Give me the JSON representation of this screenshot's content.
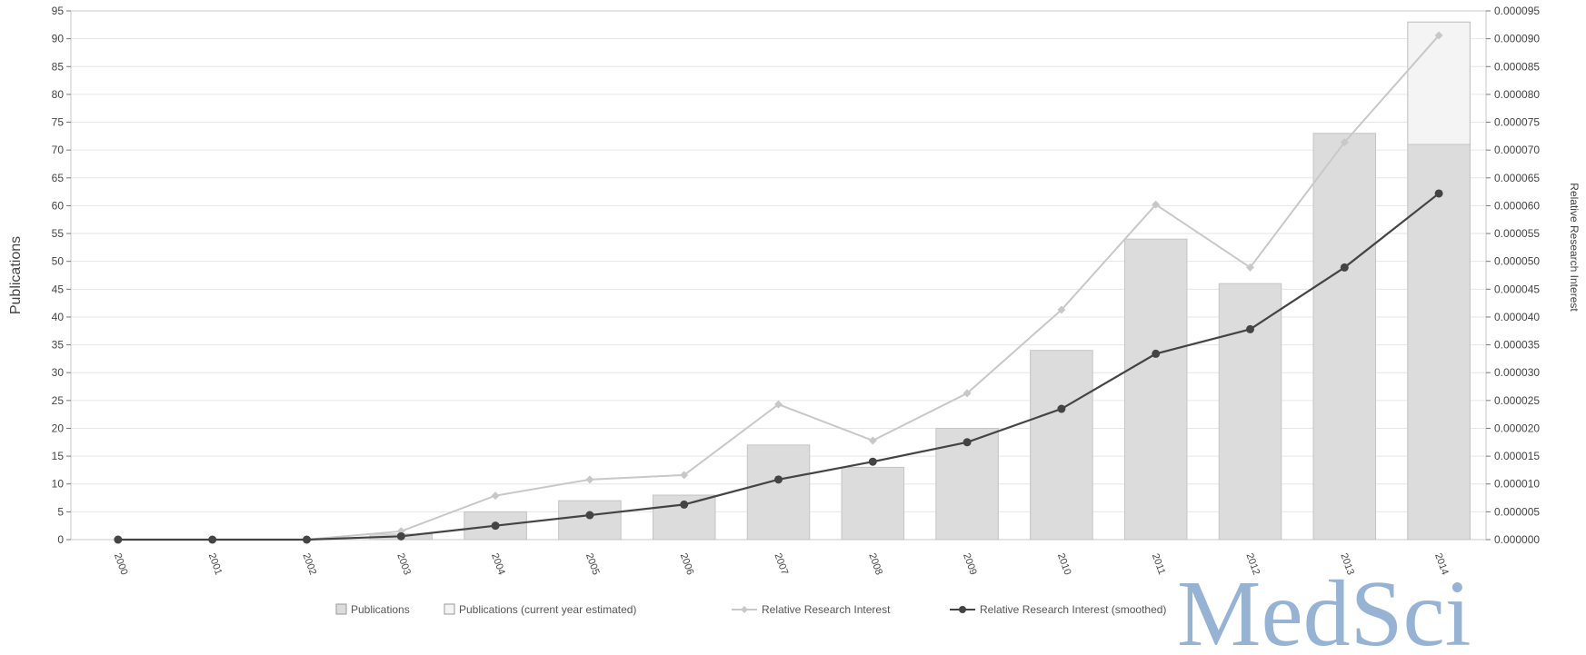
{
  "chart_data": {
    "type": "bar",
    "categories": [
      "2000",
      "2001",
      "2002",
      "2003",
      "2004",
      "2005",
      "2006",
      "2007",
      "2008",
      "2009",
      "2010",
      "2011",
      "2012",
      "2013",
      "2014"
    ],
    "ylabel": "Publications",
    "ylabel_right": "Relative Research Interest",
    "ylim": [
      0,
      95
    ],
    "yticks": [
      0,
      5,
      10,
      15,
      20,
      25,
      30,
      35,
      40,
      45,
      50,
      55,
      60,
      65,
      70,
      75,
      80,
      85,
      90,
      95
    ],
    "y2ticks": [
      "0.000000",
      "0.000005",
      "0.000010",
      "0.000015",
      "0.000020",
      "0.000025",
      "0.000030",
      "0.000035",
      "0.000040",
      "0.000045",
      "0.000050",
      "0.000055",
      "0.000060",
      "0.000065",
      "0.000070",
      "0.000075",
      "0.000080",
      "0.000085",
      "0.000090",
      "0.000095"
    ],
    "y2lim": [
      0,
      9.5e-05
    ],
    "grid": true,
    "legend_position": "bottom",
    "series": [
      {
        "name": "Publications",
        "kind": "bar",
        "color": "#dcdcdc",
        "values": [
          0,
          0,
          0,
          1,
          5,
          7,
          8,
          17,
          13,
          20,
          34,
          54,
          46,
          73,
          71
        ]
      },
      {
        "name": "Publications (current year estimated)",
        "kind": "bar-estimate",
        "color": "#f4f4f4",
        "values": [
          0,
          0,
          0,
          1,
          5,
          7,
          8,
          17,
          13,
          20,
          34,
          54,
          46,
          73,
          93
        ]
      },
      {
        "name": "Relative Research Interest",
        "kind": "line",
        "color": "#c8c8c8",
        "values": [
          0,
          0,
          0,
          1.5e-06,
          7.9e-06,
          1.08e-05,
          1.16e-05,
          2.43e-05,
          1.78e-05,
          2.63e-05,
          4.13e-05,
          6.02e-05,
          4.89e-05,
          7.14e-05,
          9.06e-05
        ]
      },
      {
        "name": "Relative Research Interest (smoothed)",
        "kind": "line",
        "color": "#444444",
        "values": [
          0,
          0,
          0,
          6e-07,
          2.5e-06,
          4.4e-06,
          6.3e-06,
          1.08e-05,
          1.4e-05,
          1.75e-05,
          2.35e-05,
          3.34e-05,
          3.78e-05,
          4.89e-05,
          6.22e-05
        ]
      }
    ]
  },
  "watermark": "MedSci",
  "colors": {
    "bar": "#dcdcdc",
    "bar_estimate": "#f4f4f4",
    "line_raw": "#c8c8c8",
    "line_smooth": "#444444",
    "grid": "#e6e6e6",
    "watermark": "#6f97c4"
  }
}
